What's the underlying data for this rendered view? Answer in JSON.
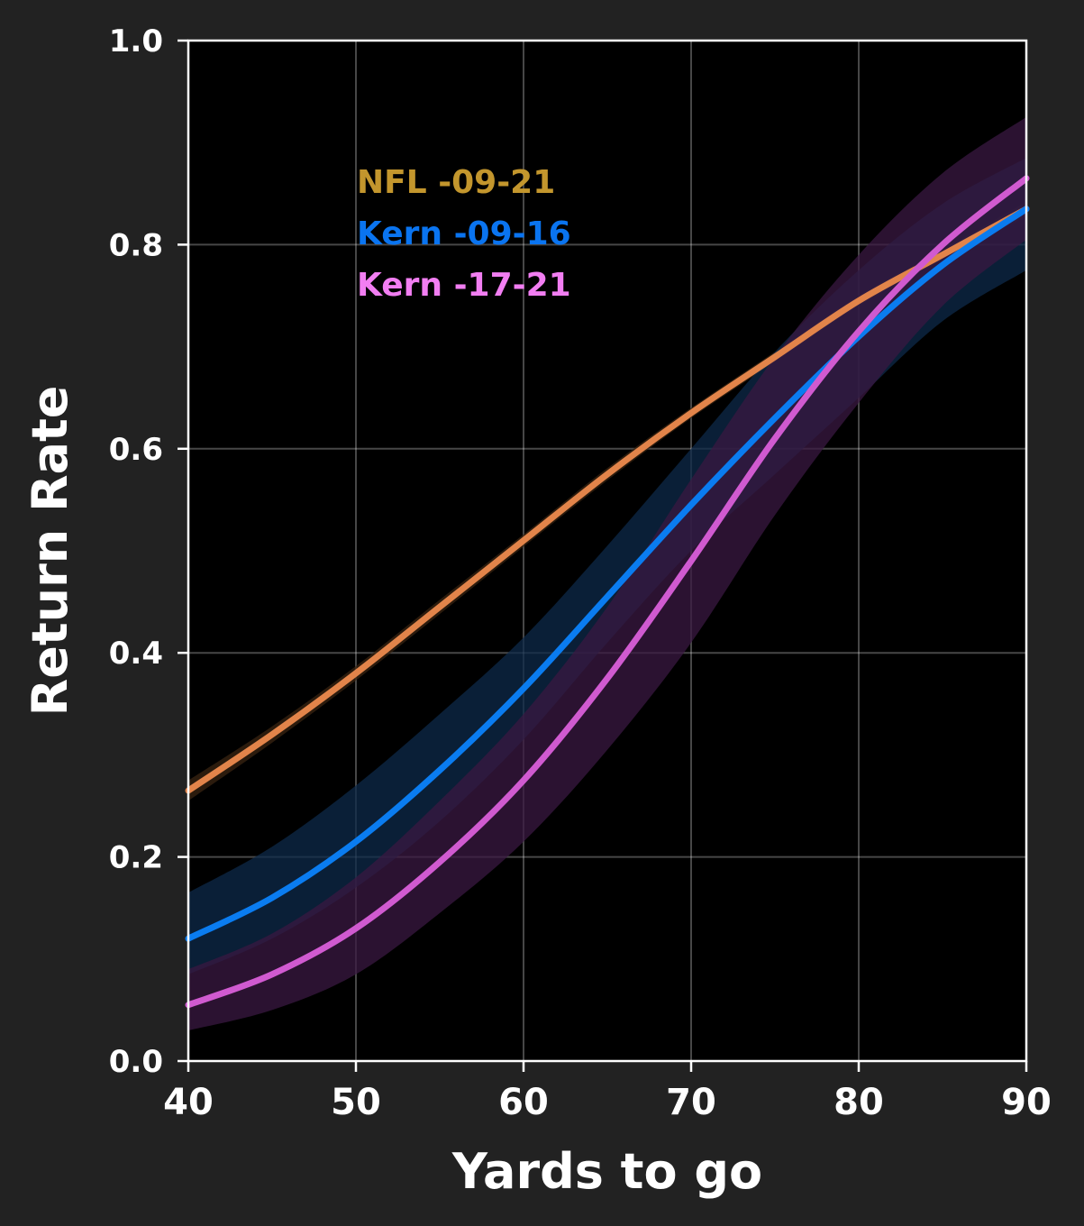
{
  "chart_data": {
    "type": "line",
    "xlabel": "Yards to go",
    "ylabel": "Return Rate",
    "xlim": [
      40,
      90
    ],
    "ylim": [
      0.0,
      1.0
    ],
    "xticks": [
      40,
      50,
      60,
      70,
      80,
      90
    ],
    "yticks": [
      0.0,
      0.2,
      0.4,
      0.6,
      0.8,
      1.0
    ],
    "xtick_labels": [
      "40",
      "50",
      "60",
      "70",
      "80",
      "90"
    ],
    "ytick_labels": [
      "0.0",
      "0.2",
      "0.4",
      "0.6",
      "0.8",
      "1.0"
    ],
    "grid": true,
    "legend_position": "top-left",
    "series": [
      {
        "name": "NFL -09-21",
        "color": "#e2844a",
        "label_color": "#c3962d",
        "band_color": "#3a2412",
        "x": [
          40,
          45,
          50,
          55,
          60,
          65,
          70,
          75,
          80,
          85,
          90
        ],
        "y": [
          0.265,
          0.32,
          0.38,
          0.445,
          0.51,
          0.575,
          0.635,
          0.69,
          0.745,
          0.79,
          0.835
        ],
        "lower": [
          0.255,
          0.312,
          0.373,
          0.438,
          0.504,
          0.569,
          0.63,
          0.685,
          0.74,
          0.785,
          0.828
        ],
        "upper": [
          0.275,
          0.328,
          0.387,
          0.452,
          0.516,
          0.581,
          0.64,
          0.695,
          0.75,
          0.795,
          0.842
        ]
      },
      {
        "name": "Kern -09-16",
        "color": "#0a7cf0",
        "label_color": "#0a74f0",
        "band_color": "#0d2a4a",
        "x": [
          40,
          45,
          50,
          55,
          60,
          65,
          70,
          75,
          80,
          85,
          90
        ],
        "y": [
          0.12,
          0.16,
          0.215,
          0.285,
          0.365,
          0.455,
          0.545,
          0.63,
          0.71,
          0.78,
          0.835
        ],
        "lower": [
          0.085,
          0.12,
          0.17,
          0.235,
          0.315,
          0.41,
          0.5,
          0.575,
          0.65,
          0.725,
          0.775
        ],
        "upper": [
          0.165,
          0.21,
          0.27,
          0.34,
          0.415,
          0.505,
          0.6,
          0.695,
          0.775,
          0.84,
          0.885
        ]
      },
      {
        "name": "Kern -17-21",
        "color": "#d05ad0",
        "label_color": "#f27ef2",
        "band_color": "#3a1842",
        "x": [
          40,
          45,
          50,
          55,
          60,
          65,
          70,
          75,
          80,
          85,
          90
        ],
        "y": [
          0.055,
          0.085,
          0.13,
          0.195,
          0.275,
          0.375,
          0.49,
          0.61,
          0.715,
          0.8,
          0.865
        ],
        "lower": [
          0.03,
          0.05,
          0.085,
          0.145,
          0.215,
          0.305,
          0.41,
          0.535,
          0.645,
          0.74,
          0.805
        ],
        "upper": [
          0.09,
          0.125,
          0.18,
          0.255,
          0.34,
          0.445,
          0.57,
          0.69,
          0.79,
          0.87,
          0.925
        ]
      }
    ]
  }
}
